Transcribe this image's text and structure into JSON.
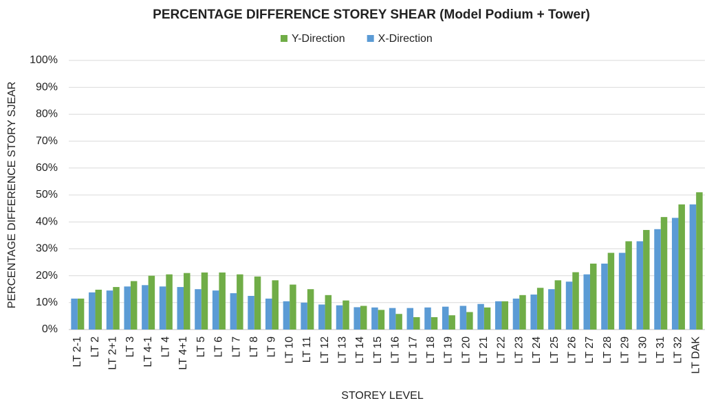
{
  "chart_data": {
    "type": "bar",
    "title": "PERCENTAGE DIFFERENCE STOREY SHEAR (Model Podium + Tower)",
    "x_label": "STOREY LEVEL",
    "y_label": "PERCENTAGE DIFFERENCE STORY SJEAR",
    "categories": [
      "LT 2-1",
      "LT 2",
      "LT 2+1",
      "LT 3",
      "LT 4-1",
      "LT 4",
      "LT 4+1",
      "LT 5",
      "LT 6",
      "LT 7",
      "LT 8",
      "LT 9",
      "LT 10",
      "LT 11",
      "LT 12",
      "LT 13",
      "LT 14",
      "LT 15",
      "LT 16",
      "LT 17",
      "LT 18",
      "LT 19",
      "LT 20",
      "LT 21",
      "LT 22",
      "LT 23",
      "LT 24",
      "LT 25",
      "LT 26",
      "LT 27",
      "LT 28",
      "LT 29",
      "LT 30",
      "LT 31",
      "LT 32",
      "LT DAK"
    ],
    "series": [
      {
        "name": "Y-Direction",
        "color": "#70ad47",
        "values": [
          11.5,
          14.8,
          15.8,
          18,
          20,
          20.5,
          21,
          21.2,
          21.2,
          20.5,
          19.7,
          18.3,
          16.7,
          15,
          12.8,
          10.8,
          8.8,
          7.3,
          5.8,
          4.6,
          4.6,
          5.3,
          6.5,
          8.2,
          10.5,
          12.8,
          15.5,
          18.3,
          21.3,
          24.5,
          28.5,
          32.8,
          37,
          41.8,
          46.5,
          51
        ]
      },
      {
        "name": "X-Direction",
        "color": "#5b9bd5",
        "values": [
          11.5,
          13.8,
          14.5,
          16,
          16.5,
          16,
          15.8,
          15,
          14.5,
          13.5,
          12.5,
          11.5,
          10.5,
          10,
          9.3,
          9,
          8.3,
          8.2,
          8,
          8,
          8.2,
          8.5,
          8.8,
          9.5,
          10.5,
          11.5,
          13,
          15,
          17.8,
          20.5,
          24.5,
          28.5,
          32.8,
          37.3,
          41.5,
          46.5
        ]
      }
    ],
    "ylim": [
      0,
      100
    ],
    "yticks": [
      {
        "value": 0,
        "label": "0%"
      },
      {
        "value": 10,
        "label": "10%"
      },
      {
        "value": 20,
        "label": "20%"
      },
      {
        "value": 30,
        "label": "30%"
      },
      {
        "value": 40,
        "label": "40%"
      },
      {
        "value": 50,
        "label": "50%"
      },
      {
        "value": 60,
        "label": "60%"
      },
      {
        "value": 70,
        "label": "70%"
      },
      {
        "value": 80,
        "label": "80%"
      },
      {
        "value": 90,
        "label": "90%"
      },
      {
        "value": 100,
        "label": "100%"
      }
    ],
    "grid": true,
    "legend": "top"
  }
}
